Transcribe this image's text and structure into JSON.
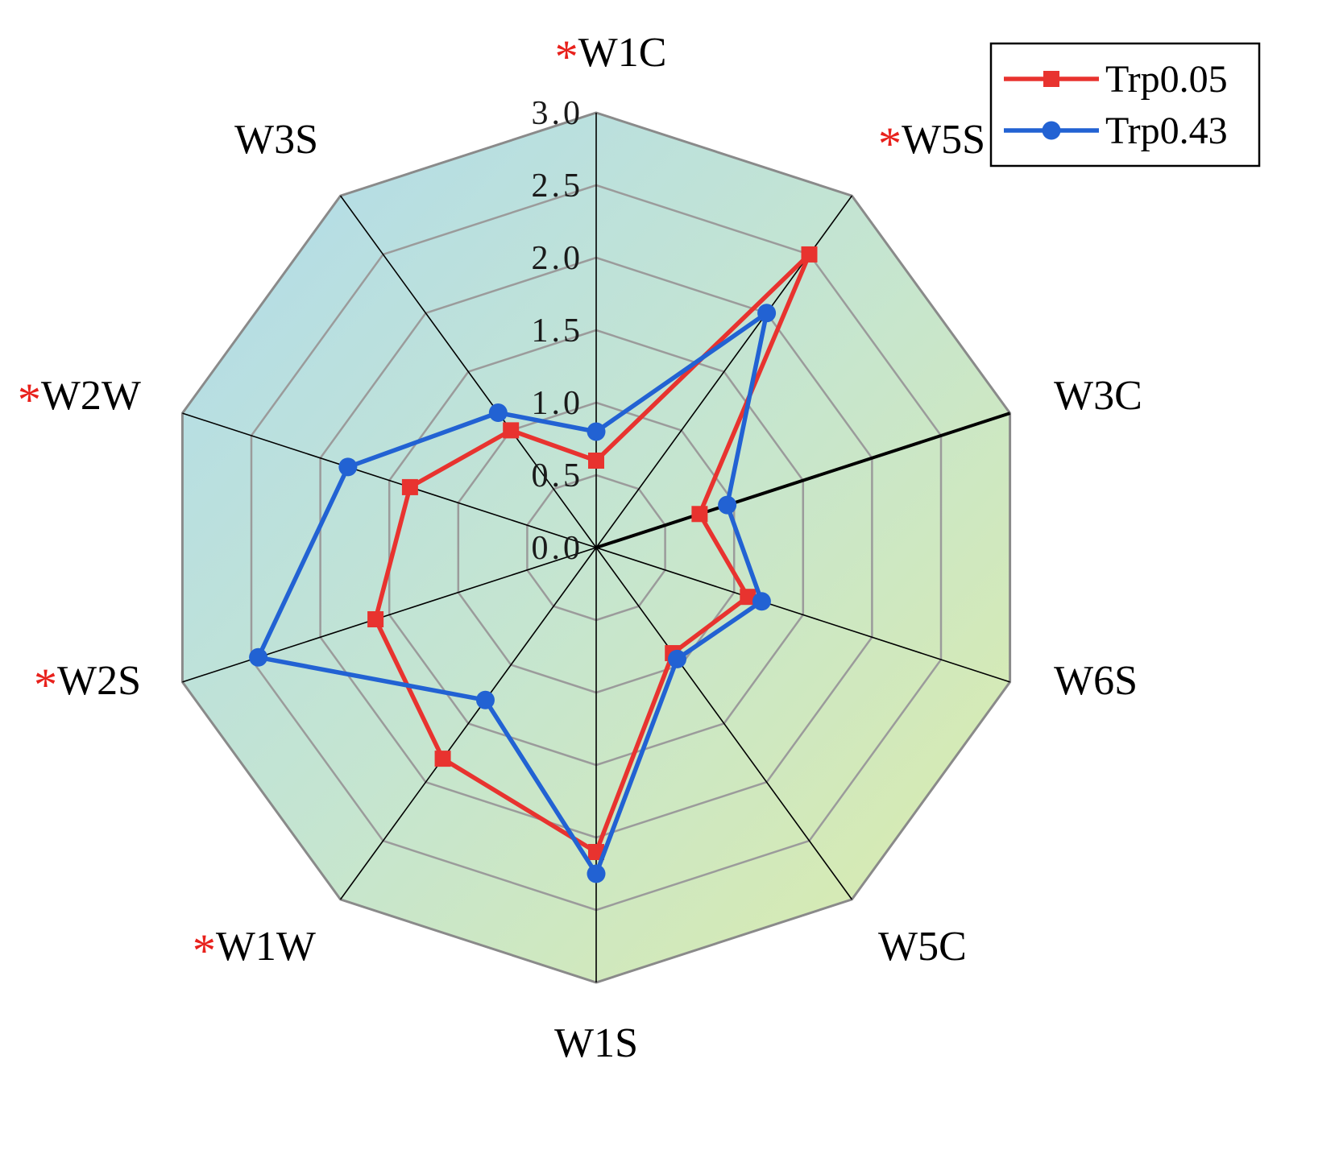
{
  "chart_data": {
    "type": "radar",
    "title": "",
    "axes": [
      {
        "label": "W1C",
        "starred": true
      },
      {
        "label": "W5S",
        "starred": true
      },
      {
        "label": "W3C",
        "starred": false
      },
      {
        "label": "W6S",
        "starred": false
      },
      {
        "label": "W5C",
        "starred": false
      },
      {
        "label": "W1S",
        "starred": false
      },
      {
        "label": "W1W",
        "starred": true
      },
      {
        "label": "W2S",
        "starred": true
      },
      {
        "label": "W2W",
        "starred": true
      },
      {
        "label": "W3S",
        "starred": false
      }
    ],
    "r_axis": {
      "min": 0.0,
      "max": 3.0,
      "tick_step": 0.5,
      "tick_labels": [
        "0.0",
        "0.5",
        "1.0",
        "1.5",
        "2.0",
        "2.5",
        "3.0"
      ]
    },
    "series": [
      {
        "name": "Trp0.05",
        "color": "#e8332f",
        "marker": "square",
        "values": [
          0.6,
          2.5,
          0.75,
          1.1,
          0.9,
          2.1,
          1.8,
          1.6,
          1.35,
          1.0
        ]
      },
      {
        "name": "Trp0.43",
        "color": "#2262d3",
        "marker": "circle",
        "values": [
          0.8,
          2.0,
          0.95,
          1.2,
          0.95,
          2.25,
          1.3,
          2.45,
          1.8,
          1.15
        ]
      }
    ],
    "star_color": "#e8211c",
    "grid": {
      "rings": 6,
      "color": "#9b9b9b",
      "outline_color": "#8a8a8a"
    },
    "spoke_color": "#000000",
    "bold_axis": "W3C",
    "background_gradient": {
      "from": "#b0dbec",
      "mid": "#c5e5d0",
      "to": "#dcecaa"
    },
    "legend": {
      "position": "top-right",
      "border_color": "#000000",
      "background": "#ffffff"
    }
  }
}
